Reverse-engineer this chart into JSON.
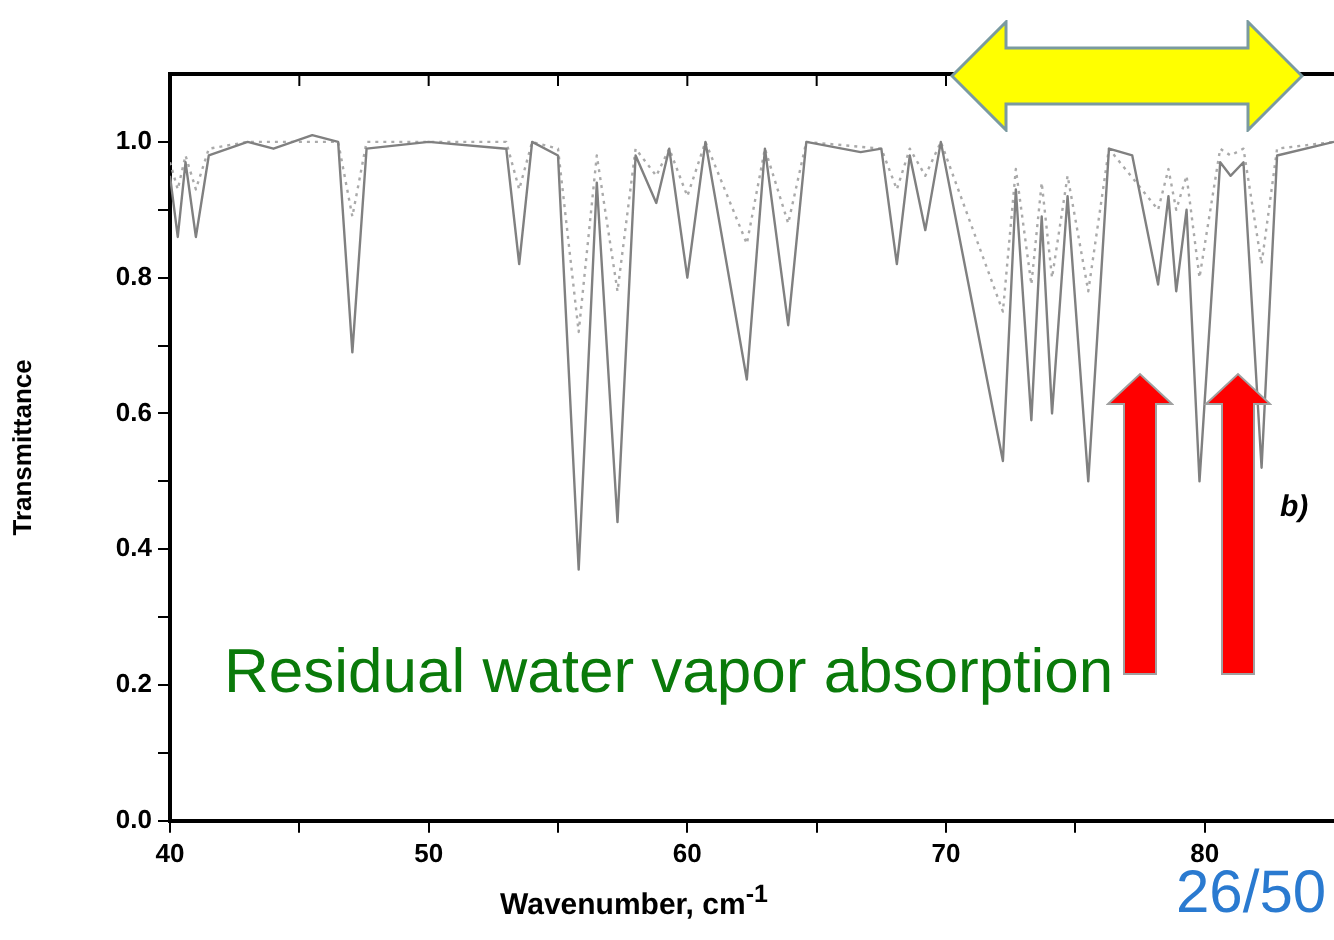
{
  "chart_data": {
    "type": "line",
    "xlabel": "Wavenumber, cm$^{-1}$",
    "ylabel": "Transmittance",
    "xlim": [
      40,
      85
    ],
    "ylim": [
      0,
      1.1
    ],
    "xticks": [
      40,
      {
        "value": 45,
        "label": null
      },
      50,
      {
        "value": 55,
        "label": null
      },
      60,
      {
        "value": 65,
        "label": null
      },
      70,
      {
        "value": 75,
        "label": null
      },
      80
    ],
    "yticks": [
      {
        "value": 0,
        "label": "0.0"
      },
      {
        "value": 0.1,
        "label": null
      },
      0.2,
      {
        "value": 0.3,
        "label": null
      },
      0.4,
      {
        "value": 0.5,
        "label": null
      },
      0.6,
      {
        "value": 0.7,
        "label": null
      },
      0.8,
      {
        "value": 0.9,
        "label": null
      },
      {
        "value": 1,
        "label": "1.0"
      }
    ],
    "grid": false,
    "legend": false,
    "marker": "none",
    "series": [
      {
        "color": "#808080",
        "line_style": "solid",
        "x": [
          40,
          40.3,
          40.6,
          41.0,
          41.5,
          43,
          44,
          45.5,
          46.5,
          47.05,
          47.6,
          50,
          53,
          53.5,
          54,
          55,
          55.8,
          56.5,
          57.3,
          58,
          58.8,
          59.3,
          60.0,
          60.7,
          62.3,
          63,
          63.9,
          64.6,
          66.7,
          67.5,
          68.1,
          68.6,
          69.2,
          69.8,
          72.2,
          72.7,
          73.3,
          73.7,
          74.1,
          74.7,
          75.5,
          76.3,
          77.2,
          78.2,
          78.6,
          78.9,
          79.3,
          79.8,
          80.6,
          81.0,
          81.5,
          82.2,
          82.8,
          85
        ],
        "values": [
          0.95,
          0.86,
          0.97,
          0.86,
          0.98,
          1.0,
          0.99,
          1.01,
          1.0,
          0.69,
          0.99,
          1.0,
          0.99,
          0.82,
          1.0,
          0.98,
          0.37,
          0.94,
          0.44,
          0.98,
          0.91,
          0.99,
          0.8,
          1.0,
          0.65,
          0.99,
          0.73,
          1.0,
          0.985,
          0.99,
          0.82,
          0.98,
          0.87,
          1.0,
          0.53,
          0.93,
          0.59,
          0.89,
          0.6,
          0.92,
          0.5,
          0.99,
          0.98,
          0.79,
          0.92,
          0.78,
          0.9,
          0.5,
          0.97,
          0.95,
          0.97,
          0.52,
          0.98,
          1.0
        ]
      },
      {
        "color": "#aaaaaa",
        "line_style": "dotted",
        "x": [
          40,
          40.3,
          40.6,
          41.0,
          41.5,
          43,
          46.5,
          47.05,
          47.6,
          53,
          53.5,
          54,
          55,
          55.8,
          56.5,
          57.3,
          58,
          58.8,
          59.3,
          60.0,
          60.7,
          62.3,
          63,
          63.9,
          64.6,
          67.5,
          68.1,
          68.6,
          69.2,
          69.8,
          72.2,
          72.7,
          73.3,
          73.7,
          74.1,
          74.7,
          75.5,
          76.3,
          78.2,
          78.6,
          78.9,
          79.3,
          79.8,
          80.6,
          81.0,
          81.5,
          82.2,
          82.8,
          85
        ],
        "values": [
          0.97,
          0.93,
          0.98,
          0.93,
          0.99,
          1.0,
          1.0,
          0.89,
          1.0,
          1.0,
          0.93,
          1.0,
          0.99,
          0.72,
          0.98,
          0.78,
          0.99,
          0.95,
          0.99,
          0.92,
          1.0,
          0.85,
          0.99,
          0.88,
          1.0,
          0.99,
          0.93,
          0.99,
          0.95,
          1.0,
          0.75,
          0.96,
          0.79,
          0.94,
          0.8,
          0.95,
          0.78,
          0.99,
          0.9,
          0.96,
          0.9,
          0.95,
          0.8,
          0.99,
          0.98,
          0.99,
          0.82,
          0.99,
          1.0
        ]
      }
    ],
    "annotations": [
      "Residual water vapor absorption",
      "b)",
      "26/50"
    ]
  }
}
